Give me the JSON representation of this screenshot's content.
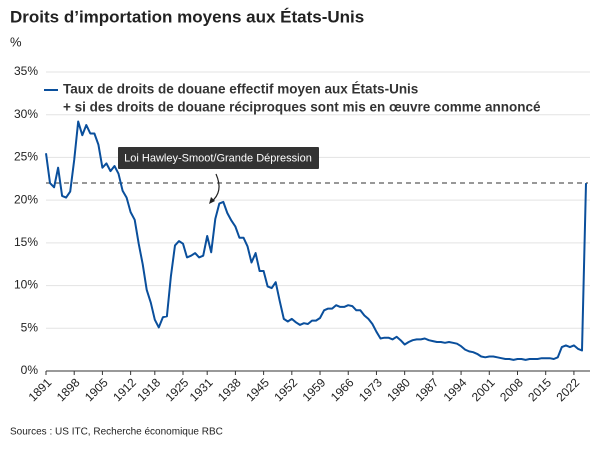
{
  "chart_data": {
    "type": "line",
    "title": "Droits d’importation moyens aux États-Unis",
    "y_label": "%",
    "source": "Sources : US ITC, Recherche économique RBC",
    "annotation": "Loi Hawley-Smoot/Grande Dépression",
    "legend_note": "+ si des droits de douane réciproques sont mis en œuvre comme annoncé",
    "reference_line": 22,
    "grid": true,
    "legend": "top",
    "xlim": [
      1891,
      2025
    ],
    "xticks": [
      1891,
      1898,
      1905,
      1912,
      1918,
      1925,
      1931,
      1938,
      1945,
      1952,
      1959,
      1966,
      1973,
      1980,
      1987,
      1994,
      2001,
      2008,
      2015,
      2022
    ],
    "ylim": [
      0,
      35
    ],
    "yticks": [
      {
        "value": 0,
        "label": "0%"
      },
      {
        "value": 5,
        "label": "5%"
      },
      {
        "value": 10,
        "label": "10%"
      },
      {
        "value": 15,
        "label": "15%"
      },
      {
        "value": 20,
        "label": "20%"
      },
      {
        "value": 25,
        "label": "25%"
      },
      {
        "value": 30,
        "label": "30%"
      },
      {
        "value": 35,
        "label": "35%"
      }
    ],
    "x": [
      1891,
      1892,
      1893,
      1894,
      1895,
      1896,
      1897,
      1898,
      1899,
      1900,
      1901,
      1902,
      1903,
      1904,
      1905,
      1906,
      1907,
      1908,
      1909,
      1910,
      1911,
      1912,
      1913,
      1914,
      1915,
      1916,
      1917,
      1918,
      1919,
      1920,
      1921,
      1922,
      1923,
      1924,
      1925,
      1926,
      1927,
      1928,
      1929,
      1930,
      1931,
      1932,
      1933,
      1934,
      1935,
      1936,
      1937,
      1938,
      1939,
      1940,
      1941,
      1942,
      1943,
      1944,
      1945,
      1946,
      1947,
      1948,
      1949,
      1950,
      1951,
      1952,
      1953,
      1954,
      1955,
      1956,
      1957,
      1958,
      1959,
      1960,
      1961,
      1962,
      1963,
      1964,
      1965,
      1966,
      1967,
      1968,
      1969,
      1970,
      1971,
      1972,
      1973,
      1974,
      1975,
      1976,
      1977,
      1978,
      1979,
      1980,
      1981,
      1982,
      1983,
      1984,
      1985,
      1986,
      1987,
      1988,
      1989,
      1990,
      1991,
      1992,
      1993,
      1994,
      1995,
      1996,
      1997,
      1998,
      1999,
      2000,
      2001,
      2002,
      2003,
      2004,
      2005,
      2006,
      2007,
      2008,
      2009,
      2010,
      2011,
      2012,
      2013,
      2014,
      2015,
      2016,
      2017,
      2018,
      2019,
      2020,
      2021,
      2022,
      2023,
      2024,
      2025
    ],
    "series": [
      {
        "name": "Taux de droits de douane effectif moyen aux États-Unis",
        "color": "#0a4f9c",
        "values": [
          25.5,
          22,
          21.5,
          23.8,
          20.5,
          20.3,
          21,
          24.7,
          29.2,
          27.6,
          28.8,
          27.8,
          27.8,
          26.5,
          23.8,
          24.3,
          23.4,
          24,
          23.1,
          21.1,
          20.3,
          18.6,
          17.7,
          14.9,
          12.5,
          9.5,
          8,
          6,
          5.1,
          6.3,
          6.4,
          11.1,
          14.7,
          15.2,
          14.9,
          13.3,
          13.5,
          13.8,
          13.3,
          13.5,
          15.8,
          13.9,
          17.8,
          19.6,
          19.8,
          18.5,
          17.6,
          16.9,
          15.6,
          15.6,
          14.6,
          12.7,
          13.8,
          11.7,
          11.7,
          9.9,
          9.7,
          10.4,
          8.2,
          6.1,
          5.8,
          6.1,
          5.7,
          5.4,
          5.6,
          5.5,
          5.9,
          5.9,
          6.2,
          7.1,
          7.3,
          7.3,
          7.7,
          7.5,
          7.5,
          7.7,
          7.6,
          7.1,
          7.1,
          6.5,
          6.1,
          5.5,
          4.6,
          3.8,
          3.9,
          3.9,
          3.7,
          4,
          3.6,
          3.1,
          3.4,
          3.6,
          3.7,
          3.7,
          3.8,
          3.6,
          3.5,
          3.4,
          3.4,
          3.3,
          3.4,
          3.3,
          3.2,
          2.9,
          2.5,
          2.3,
          2.2,
          2,
          1.7,
          1.6,
          1.7,
          1.7,
          1.6,
          1.5,
          1.4,
          1.4,
          1.3,
          1.4,
          1.4,
          1.3,
          1.4,
          1.4,
          1.4,
          1.5,
          1.5,
          1.5,
          1.4,
          1.6,
          2.8,
          3,
          2.8,
          3,
          2.6,
          2.4,
          22
        ]
      }
    ]
  }
}
